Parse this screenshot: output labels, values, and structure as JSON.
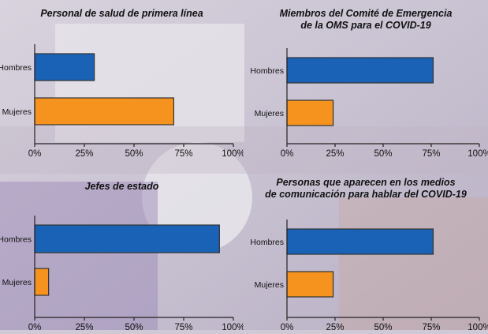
{
  "colors": {
    "hombres": "#1a62b5",
    "mujeres": "#f5931e",
    "axis": "#222222"
  },
  "chart_data": [
    {
      "type": "bar",
      "orientation": "horizontal",
      "title": "Personal de salud de primera línea",
      "categories": [
        "Hombres",
        "Mujeres"
      ],
      "values": [
        30,
        70
      ],
      "xlim": [
        0,
        100
      ],
      "xticks": [
        "0%",
        "25%",
        "50%",
        "75%",
        "100%"
      ]
    },
    {
      "type": "bar",
      "orientation": "horizontal",
      "title": [
        "Miembros del Comité de Emergencia",
        "de la OMS para el COVID-19"
      ],
      "categories": [
        "Hombres",
        "Mujeres"
      ],
      "values": [
        76,
        24
      ],
      "xlim": [
        0,
        100
      ],
      "xticks": [
        "0%",
        "25%",
        "50%",
        "75%",
        "100%"
      ]
    },
    {
      "type": "bar",
      "orientation": "horizontal",
      "title": "Jefes de estado",
      "categories": [
        "Hombres",
        "Mujeres"
      ],
      "values": [
        93,
        7
      ],
      "xlim": [
        0,
        100
      ],
      "xticks": [
        "0%",
        "25%",
        "50%",
        "75%",
        "100%"
      ]
    },
    {
      "type": "bar",
      "orientation": "horizontal",
      "title": [
        "Personas que aparecen en los medios",
        "de comunicación para hablar del COVID-19"
      ],
      "categories": [
        "Hombres",
        "Mujeres"
      ],
      "values": [
        76,
        24
      ],
      "xlim": [
        0,
        100
      ],
      "xticks": [
        "0%",
        "25%",
        "50%",
        "75%",
        "100%"
      ]
    }
  ]
}
